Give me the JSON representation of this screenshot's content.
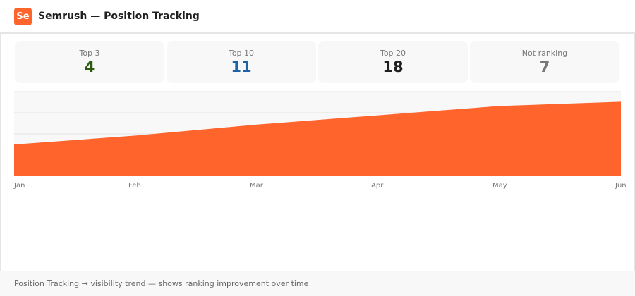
{
  "header": {
    "logo_text": "Se",
    "title": "Semrush — Position Tracking"
  },
  "cards": [
    {
      "label": "Top 3",
      "value": "4",
      "color": "#2d5a0e"
    },
    {
      "label": "Top 10",
      "value": "11",
      "color": "#1e63a8"
    },
    {
      "label": "Top 20",
      "value": "18",
      "color": "#1f1f1f"
    },
    {
      "label": "Not ranking",
      "value": "7",
      "color": "#777777"
    }
  ],
  "chart_data": {
    "type": "area",
    "categories": [
      "Jan",
      "Feb",
      "Mar",
      "Apr",
      "May",
      "Jun"
    ],
    "values": [
      37.5,
      48,
      61,
      72,
      83,
      88
    ],
    "ylim": [
      0,
      100
    ],
    "grid": true,
    "color": "#ff642d"
  },
  "footer": {
    "text": "Position Tracking → visibility trend — shows ranking improvement over time"
  }
}
